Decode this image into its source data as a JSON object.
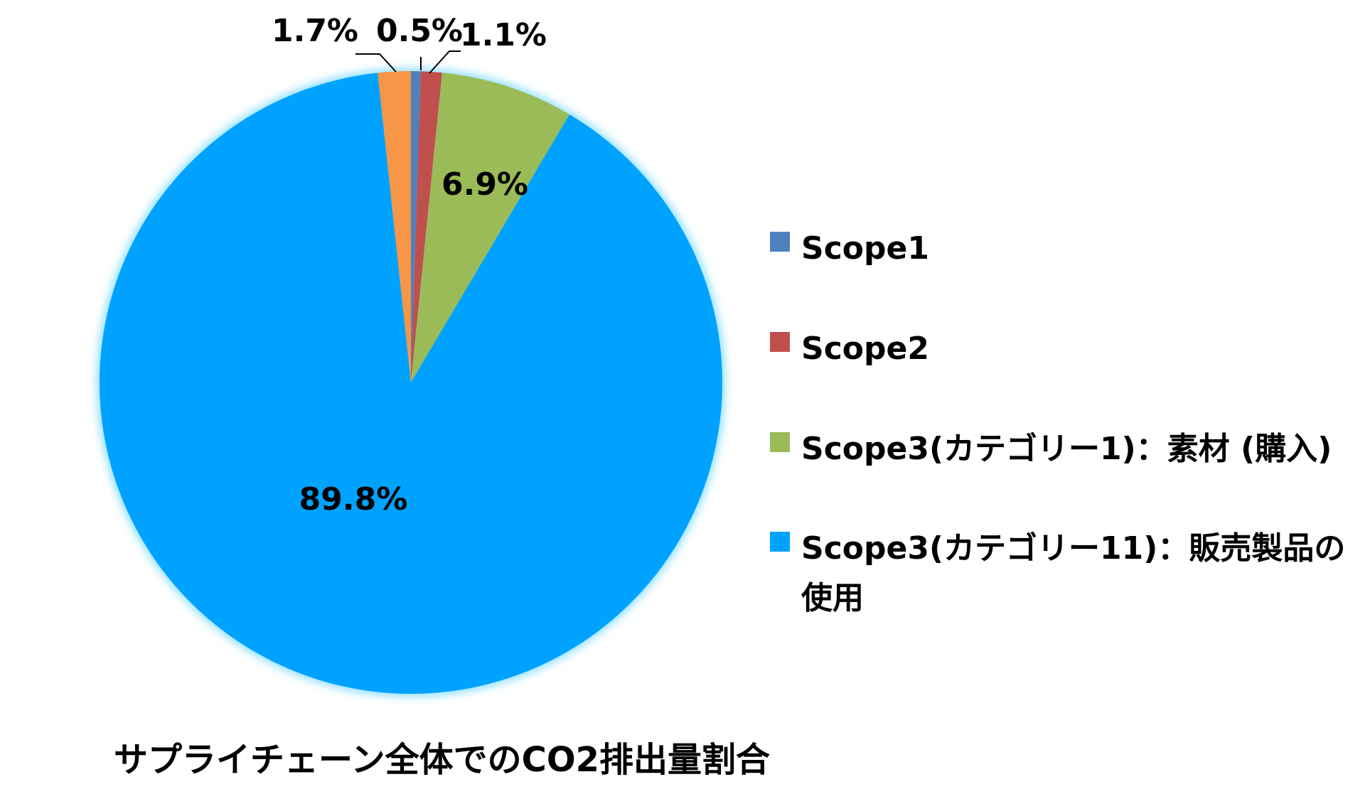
{
  "chart_data": {
    "type": "pie",
    "title": "サプライチェーン全体でのCO2排出量割合",
    "legend_placement": "right",
    "series": [
      {
        "name": "Scope1",
        "value": 0.5,
        "label": "0.5%",
        "color": "#4f81bd"
      },
      {
        "name": "Scope2",
        "value": 1.1,
        "label": "1.1%",
        "color": "#c0504d"
      },
      {
        "name": "Scope3(カテゴリー1)：素材 (購入)",
        "value": 6.9,
        "label": "6.9%",
        "color": "#9bbb59"
      },
      {
        "name": "Scope3(カテゴリー11)：販売製品の使用",
        "value": 89.8,
        "label": "89.8%",
        "color": "#00a2ff"
      },
      {
        "name": "",
        "value": 1.7,
        "label": "1.7%",
        "color": "#f79646"
      }
    ],
    "legend_lines": [
      [
        "Scope1"
      ],
      [
        "Scope2"
      ],
      [
        "Scope3(カテゴリー1)：素材 (購入)"
      ],
      [
        "Scope3(カテゴリー11)：販売製品の",
        "使用"
      ]
    ]
  }
}
